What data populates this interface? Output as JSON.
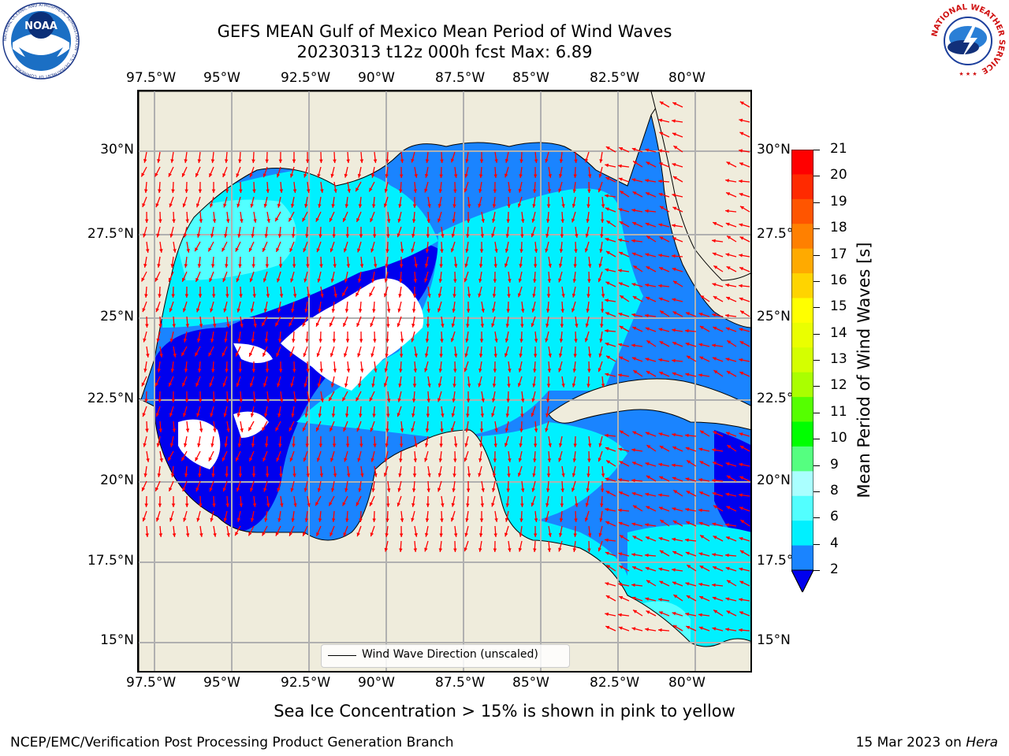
{
  "title": {
    "line1": "GEFS MEAN Gulf of Mexico Mean Period of Wind Waves",
    "line2": "20230313 t12z 000h fcst   Max: 6.89"
  },
  "map": {
    "lon_ticks": [
      "97.5°W",
      "95°W",
      "92.5°W",
      "90°W",
      "87.5°W",
      "85°W",
      "82.5°W",
      "80°W"
    ],
    "lat_ticks": [
      "30°N",
      "27.5°N",
      "25°N",
      "22.5°N",
      "20°N",
      "17.5°N",
      "15°N"
    ],
    "legend_text": "Wind Wave Direction (unscaled)",
    "colors": {
      "land": "#efecdc",
      "ocean_low": "#0000ee",
      "ocean_mid": "#1a84ff",
      "ocean_high": "#00f0ff",
      "ocean_top": "#52ffff",
      "arrow": "#ff0000"
    }
  },
  "colorbar": {
    "title": "Mean Period of Wind Waves [s]",
    "labels": [
      "21",
      "20",
      "19",
      "18",
      "17",
      "16",
      "15",
      "14",
      "13",
      "12",
      "11",
      "10",
      "9",
      "8",
      "6",
      "4",
      "2"
    ],
    "colors": [
      "#ff0000",
      "#ff2a00",
      "#ff5500",
      "#ff8000",
      "#ffaa00",
      "#ffd400",
      "#ffff00",
      "#eaff00",
      "#d4ff00",
      "#aaff00",
      "#55ff00",
      "#00ff00",
      "#55ff80",
      "#aaffff",
      "#52ffff",
      "#00f0ff",
      "#1a84ff",
      "#0000ee"
    ]
  },
  "ice_note": "Sea Ice Concentration > 15% is shown in pink to yellow",
  "footer": {
    "left": "NCEP/EMC/Verification Post Processing Product Generation Branch",
    "date": "15 Mar 2023 on ",
    "host": "Hera"
  },
  "logos": {
    "noaa_text": "NOAA",
    "noaa_ring": "NATIONAL OCEANIC AND ATMOSPHERIC ADMINISTRATION · U.S. DEPARTMENT OF COMMERCE",
    "nws_ring": "NATIONAL WEATHER SERVICE"
  }
}
